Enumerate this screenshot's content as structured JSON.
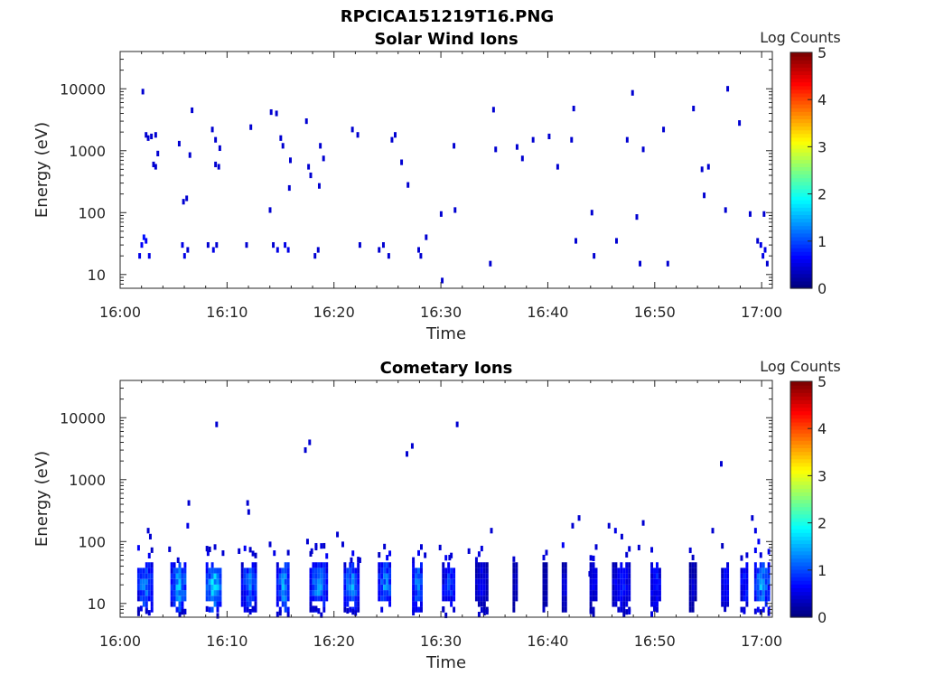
{
  "figure_title": "RPCICA151219T16.PNG",
  "chart_data": [
    {
      "type": "heatmap",
      "title": "Solar Wind Ions",
      "xlabel": "Time",
      "ylabel": "Energy (eV)",
      "x_ticks": [
        "16:00",
        "16:10",
        "16:20",
        "16:30",
        "16:40",
        "16:50",
        "17:00"
      ],
      "x_range_minutes": [
        0,
        61
      ],
      "y_scale": "log",
      "y_ticks": [
        10,
        100,
        1000,
        10000
      ],
      "y_tick_labels": [
        "10",
        "100",
        "1000",
        "10000"
      ],
      "ylim": [
        6,
        40000
      ],
      "colorbar": {
        "label": "Log Counts",
        "range": [
          0,
          5
        ],
        "ticks": [
          "0",
          "1",
          "2",
          "3",
          "4",
          "5"
        ],
        "colormap": "jet"
      },
      "grid": false,
      "cells": [
        [
          1.7,
          20,
          0.5
        ],
        [
          1.9,
          30,
          0.6
        ],
        [
          2.1,
          40,
          0.7
        ],
        [
          2.3,
          35,
          0.6
        ],
        [
          2.6,
          20,
          0.5
        ],
        [
          2.0,
          9000,
          0.4
        ],
        [
          2.3,
          1800,
          0.4
        ],
        [
          2.5,
          1600,
          0.4
        ],
        [
          2.8,
          1700,
          0.4
        ],
        [
          3.2,
          1800,
          0.4
        ],
        [
          3.0,
          600,
          0.4
        ],
        [
          3.2,
          550,
          0.4
        ],
        [
          3.4,
          900,
          0.4
        ],
        [
          5.4,
          1300,
          0.4
        ],
        [
          5.7,
          30,
          0.5
        ],
        [
          5.9,
          20,
          0.5
        ],
        [
          6.2,
          25,
          0.4
        ],
        [
          5.8,
          150,
          0.4
        ],
        [
          6.1,
          170,
          0.4
        ],
        [
          6.4,
          850,
          0.4
        ],
        [
          6.6,
          4500,
          0.4
        ],
        [
          8.1,
          30,
          0.4
        ],
        [
          8.6,
          25,
          0.5
        ],
        [
          8.9,
          30,
          0.4
        ],
        [
          8.5,
          2200,
          0.4
        ],
        [
          8.8,
          1500,
          0.4
        ],
        [
          9.2,
          1100,
          0.4
        ],
        [
          8.8,
          600,
          0.4
        ],
        [
          9.1,
          550,
          0.4
        ],
        [
          11.7,
          30,
          0.4
        ],
        [
          12.1,
          2400,
          0.4
        ],
        [
          13.9,
          110,
          0.4
        ],
        [
          14.0,
          4200,
          0.4
        ],
        [
          14.2,
          30,
          0.4
        ],
        [
          14.5,
          4000,
          0.4
        ],
        [
          14.6,
          25,
          0.5
        ],
        [
          14.9,
          1600,
          0.4
        ],
        [
          15.1,
          1200,
          0.4
        ],
        [
          15.3,
          30,
          0.5
        ],
        [
          15.6,
          25,
          0.5
        ],
        [
          15.8,
          700,
          0.4
        ],
        [
          15.7,
          250,
          0.4
        ],
        [
          17.3,
          3000,
          0.4
        ],
        [
          17.5,
          550,
          0.4
        ],
        [
          17.7,
          400,
          0.4
        ],
        [
          18.1,
          20,
          0.4
        ],
        [
          18.4,
          25,
          0.4
        ],
        [
          18.6,
          1200,
          0.4
        ],
        [
          18.5,
          270,
          0.4
        ],
        [
          18.9,
          750,
          0.4
        ],
        [
          21.6,
          2200,
          0.4
        ],
        [
          22.1,
          1800,
          0.4
        ],
        [
          22.3,
          30,
          0.4
        ],
        [
          24.1,
          25,
          0.4
        ],
        [
          24.5,
          30,
          0.4
        ],
        [
          25.0,
          20,
          0.4
        ],
        [
          25.3,
          1500,
          0.4
        ],
        [
          25.6,
          1800,
          0.4
        ],
        [
          26.2,
          650,
          0.4
        ],
        [
          26.8,
          280,
          0.4
        ],
        [
          27.8,
          25,
          0.4
        ],
        [
          28.0,
          20,
          0.4
        ],
        [
          28.5,
          40,
          0.4
        ],
        [
          29.9,
          95,
          0.4
        ],
        [
          30.0,
          8,
          0.4
        ],
        [
          31.1,
          1200,
          0.4
        ],
        [
          31.2,
          110,
          0.4
        ],
        [
          34.5,
          15,
          0.4
        ],
        [
          34.8,
          4600,
          0.4
        ],
        [
          35.0,
          1050,
          0.4
        ],
        [
          37.0,
          1150,
          0.4
        ],
        [
          37.5,
          750,
          0.4
        ],
        [
          38.5,
          1500,
          0.4
        ],
        [
          40.0,
          1700,
          0.4
        ],
        [
          40.8,
          550,
          0.4
        ],
        [
          42.1,
          1500,
          0.4
        ],
        [
          42.3,
          4800,
          0.4
        ],
        [
          42.5,
          35,
          0.4
        ],
        [
          44.0,
          100,
          0.4
        ],
        [
          44.2,
          20,
          0.4
        ],
        [
          46.3,
          35,
          0.4
        ],
        [
          47.3,
          1500,
          0.4
        ],
        [
          47.8,
          8600,
          0.4
        ],
        [
          48.2,
          85,
          0.4
        ],
        [
          48.5,
          15,
          0.4
        ],
        [
          48.8,
          1050,
          0.4
        ],
        [
          50.7,
          2200,
          0.4
        ],
        [
          51.1,
          15,
          0.4
        ],
        [
          53.5,
          4800,
          0.4
        ],
        [
          54.3,
          500,
          0.4
        ],
        [
          54.5,
          190,
          0.4
        ],
        [
          54.9,
          550,
          0.4
        ],
        [
          56.5,
          110,
          0.4
        ],
        [
          56.7,
          10000,
          0.4
        ],
        [
          57.8,
          2800,
          0.4
        ],
        [
          58.8,
          95,
          0.4
        ],
        [
          59.5,
          35,
          0.4
        ],
        [
          59.8,
          30,
          0.5
        ],
        [
          60.0,
          20,
          0.5
        ],
        [
          60.2,
          25,
          0.5
        ],
        [
          60.4,
          15,
          0.4
        ],
        [
          60.1,
          95,
          0.4
        ]
      ]
    },
    {
      "type": "heatmap",
      "title": "Cometary Ions",
      "xlabel": "Time",
      "ylabel": "Energy (eV)",
      "x_ticks": [
        "16:00",
        "16:10",
        "16:20",
        "16:30",
        "16:40",
        "16:50",
        "17:00"
      ],
      "x_range_minutes": [
        0,
        61
      ],
      "y_scale": "log",
      "y_ticks": [
        10,
        100,
        1000,
        10000
      ],
      "y_tick_labels": [
        "10",
        "100",
        "1000",
        "10000"
      ],
      "ylim": [
        6,
        40000
      ],
      "colorbar": {
        "label": "Log Counts",
        "range": [
          0,
          5
        ],
        "ticks": [
          "0",
          "1",
          "2",
          "3",
          "4",
          "5"
        ],
        "colormap": "jet"
      },
      "grid": false,
      "bursts": [
        [
          1.6,
          2.9,
          1.4
        ],
        [
          4.7,
          6.1,
          1.6
        ],
        [
          8.0,
          9.3,
          1.8
        ],
        [
          11.3,
          12.7,
          1.3
        ],
        [
          14.6,
          15.8,
          1.5
        ],
        [
          17.7,
          19.2,
          1.4
        ],
        [
          20.9,
          22.2,
          1.4
        ],
        [
          24.1,
          25.3,
          1.4
        ],
        [
          27.3,
          28.2,
          1.3
        ],
        [
          30.1,
          31.3,
          1.0
        ],
        [
          33.2,
          34.2,
          0.6
        ],
        [
          36.7,
          37.1,
          0.4
        ],
        [
          39.5,
          39.9,
          0.3
        ],
        [
          41.3,
          41.7,
          0.5
        ],
        [
          43.9,
          44.6,
          0.6
        ],
        [
          46.0,
          47.6,
          0.8
        ],
        [
          49.6,
          50.4,
          0.9
        ],
        [
          53.2,
          53.7,
          0.4
        ],
        [
          56.2,
          56.9,
          0.8
        ],
        [
          58.0,
          58.7,
          0.9
        ],
        [
          59.3,
          60.6,
          1.5
        ]
      ],
      "cells": [
        [
          2.5,
          150,
          0.4
        ],
        [
          2.7,
          120,
          0.4
        ],
        [
          4.5,
          75,
          0.4
        ],
        [
          5.3,
          50,
          0.4
        ],
        [
          6.2,
          180,
          0.5
        ],
        [
          6.3,
          420,
          0.4
        ],
        [
          8.1,
          65,
          0.5
        ],
        [
          8.9,
          7800,
          0.4
        ],
        [
          9.5,
          65,
          0.4
        ],
        [
          11.0,
          70,
          0.4
        ],
        [
          11.8,
          420,
          0.4
        ],
        [
          11.9,
          300,
          0.4
        ],
        [
          13.9,
          90,
          0.4
        ],
        [
          14.3,
          65,
          0.5
        ],
        [
          17.2,
          3000,
          0.4
        ],
        [
          17.6,
          4000,
          0.4
        ],
        [
          17.4,
          100,
          0.4
        ],
        [
          17.8,
          70,
          0.4
        ],
        [
          18.2,
          80,
          0.4
        ],
        [
          20.2,
          130,
          0.4
        ],
        [
          20.7,
          90,
          0.4
        ],
        [
          21.5,
          50,
          0.4
        ],
        [
          22.3,
          50,
          0.4
        ],
        [
          26.7,
          2600,
          0.4
        ],
        [
          27.2,
          3500,
          0.4
        ],
        [
          28.4,
          60,
          0.4
        ],
        [
          29.8,
          80,
          0.4
        ],
        [
          31.4,
          7800,
          0.4
        ],
        [
          30.7,
          55,
          0.4
        ],
        [
          32.5,
          70,
          0.4
        ],
        [
          34.6,
          150,
          0.4
        ],
        [
          42.2,
          180,
          0.4
        ],
        [
          42.8,
          240,
          0.4
        ],
        [
          43.8,
          30,
          0.4
        ],
        [
          45.6,
          180,
          0.4
        ],
        [
          46.2,
          150,
          0.5
        ],
        [
          46.8,
          120,
          0.4
        ],
        [
          48.4,
          80,
          0.4
        ],
        [
          48.8,
          200,
          0.4
        ],
        [
          56.1,
          1800,
          0.4
        ],
        [
          55.3,
          150,
          0.4
        ],
        [
          59.0,
          240,
          0.4
        ],
        [
          59.3,
          150,
          0.5
        ],
        [
          59.6,
          100,
          0.6
        ]
      ]
    }
  ]
}
